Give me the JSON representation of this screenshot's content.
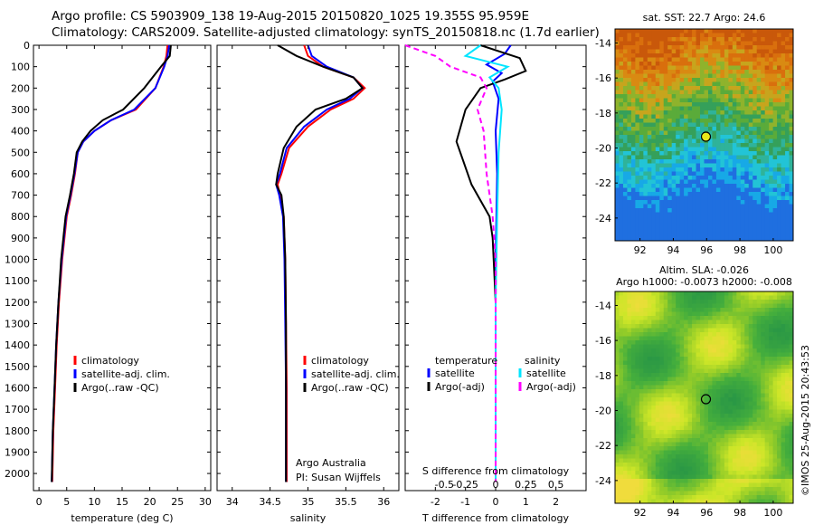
{
  "header": {
    "line1": "Argo profile: CS 5903909_138 19-Aug-2015 20150820_1025 19.355S 95.959E",
    "line2": "Climatology: CARS2009. Satellite-adjusted climatology: synTS_20150818.nc (1.7d earlier)"
  },
  "colors": {
    "climatology": "#ff0000",
    "satellite": "#0000ff",
    "argo": "#000000",
    "sal_satellite": "#00e5ff",
    "sal_argo": "#ff00ff"
  },
  "chart_data": [
    {
      "type": "line",
      "xlabel": "temperature (deg C)",
      "xlim": [
        -1,
        31
      ],
      "xticks": [
        0,
        5,
        10,
        15,
        20,
        25,
        30
      ],
      "ylim": [
        2080,
        0
      ],
      "yticks": [
        0,
        100,
        200,
        300,
        400,
        500,
        600,
        700,
        800,
        900,
        1000,
        1100,
        1200,
        1300,
        1400,
        1500,
        1600,
        1700,
        1800,
        1900,
        2000
      ],
      "legend": [
        "climatology",
        "satellite-adj. clim.",
        "Argo(..raw -QC)"
      ],
      "series": [
        {
          "name": "climatology",
          "color": "#ff0000",
          "x": [
            23.2,
            23.0,
            22.5,
            21.0,
            17.5,
            13.0,
            10.0,
            8.0,
            7.0,
            6.5,
            5.8,
            5.0,
            4.2,
            3.6,
            3.2,
            2.9,
            2.6,
            2.4
          ],
          "y": [
            0,
            50,
            100,
            200,
            300,
            350,
            400,
            450,
            500,
            600,
            700,
            800,
            1000,
            1200,
            1400,
            1600,
            1800,
            2040
          ]
        },
        {
          "name": "satellite-adj. clim.",
          "color": "#0000ff",
          "x": [
            23.5,
            23.2,
            22.6,
            21.0,
            17.2,
            13.0,
            10.0,
            8.0,
            7.0,
            6.4,
            5.7,
            4.9,
            4.1,
            3.5,
            3.1,
            2.8,
            2.5,
            2.3
          ],
          "y": [
            0,
            50,
            100,
            200,
            300,
            350,
            400,
            450,
            500,
            600,
            700,
            800,
            1000,
            1200,
            1400,
            1600,
            1800,
            2040
          ]
        },
        {
          "name": "Argo(..raw -QC)",
          "color": "#000000",
          "x": [
            23.8,
            23.6,
            22.0,
            19.0,
            15.2,
            11.5,
            9.3,
            7.8,
            6.8,
            6.3,
            5.6,
            4.8,
            4.0,
            3.5,
            3.1,
            2.8,
            2.5,
            2.3
          ],
          "y": [
            0,
            50,
            100,
            200,
            300,
            350,
            400,
            450,
            500,
            600,
            700,
            800,
            1000,
            1200,
            1400,
            1600,
            1800,
            2040
          ]
        }
      ]
    },
    {
      "type": "line",
      "xlabel": "salinity",
      "xlim": [
        33.8,
        36.2
      ],
      "xticks": [
        34,
        34.5,
        35,
        35.5,
        36
      ],
      "ylim": [
        2080,
        0
      ],
      "legend": [
        "climatology",
        "satellite-adj. clim.",
        "Argo(..raw -QC)"
      ],
      "annotation": [
        "Argo Australia",
        "PI: Susan Wijffels"
      ],
      "series": [
        {
          "name": "climatology",
          "color": "#ff0000",
          "x": [
            34.95,
            35.0,
            35.2,
            35.6,
            35.75,
            35.6,
            35.3,
            35.0,
            34.75,
            34.65,
            34.6,
            34.63,
            34.68,
            34.7,
            34.71,
            34.72,
            34.72,
            34.72
          ],
          "y": [
            0,
            50,
            100,
            150,
            200,
            250,
            300,
            380,
            480,
            600,
            650,
            700,
            800,
            1000,
            1300,
            1600,
            1900,
            2040
          ]
        },
        {
          "name": "satellite-adj. clim.",
          "color": "#0000ff",
          "x": [
            35.0,
            35.05,
            35.25,
            35.6,
            35.72,
            35.55,
            35.25,
            34.95,
            34.72,
            34.63,
            34.58,
            34.62,
            34.67,
            34.69,
            34.7,
            34.71,
            34.71,
            34.71
          ],
          "y": [
            0,
            50,
            100,
            150,
            200,
            250,
            300,
            380,
            480,
            600,
            650,
            700,
            800,
            1000,
            1300,
            1600,
            1900,
            2040
          ]
        },
        {
          "name": "Argo(..raw -QC)",
          "color": "#000000",
          "x": [
            34.6,
            34.85,
            35.2,
            35.6,
            35.72,
            35.5,
            35.1,
            34.85,
            34.68,
            34.6,
            34.58,
            34.65,
            34.68,
            34.7,
            34.71,
            34.71,
            34.71,
            34.71
          ],
          "y": [
            0,
            50,
            100,
            150,
            200,
            250,
            300,
            380,
            480,
            600,
            650,
            700,
            800,
            1000,
            1300,
            1600,
            1900,
            2040
          ]
        }
      ]
    },
    {
      "type": "line",
      "xlabel": "T difference from climatology",
      "xticks_T": [
        -2,
        -1,
        0,
        1,
        2
      ],
      "xlim_T": [
        -3,
        3
      ],
      "xlabel_S": "S difference from climatology",
      "xticks_S": [
        "-0.5",
        "-0.25",
        "0",
        "0.25",
        "0.5"
      ],
      "ylim": [
        2080,
        0
      ],
      "legend_left_title": "temperature",
      "legend_right_title": "salinity",
      "legend": [
        "satellite",
        "Argo(-adj)",
        "satellite",
        "Argo(-adj)"
      ],
      "series": [
        {
          "name": "satellite",
          "quantity": "temperature",
          "color": "#0000ff",
          "x": [
            0.5,
            0.3,
            -0.3,
            0.2,
            -0.1,
            0.1,
            0.0,
            0.05,
            0.0,
            0.0
          ],
          "y": [
            0,
            40,
            90,
            130,
            170,
            250,
            400,
            600,
            1000,
            2040
          ]
        },
        {
          "name": "Argo(-adj)",
          "quantity": "temperature",
          "color": "#000000",
          "x": [
            -0.5,
            0.8,
            1.0,
            0.3,
            -0.5,
            -1.0,
            -1.3,
            -0.8,
            -0.2,
            -0.1,
            0.0,
            0.0
          ],
          "y": [
            0,
            60,
            120,
            160,
            200,
            300,
            450,
            650,
            800,
            900,
            1200,
            2040
          ]
        },
        {
          "name": "satellite",
          "quantity": "salinity",
          "color": "#00e5ff",
          "x": [
            -0.5,
            -1.0,
            0.4,
            -0.2,
            0.1,
            0.2,
            0.1,
            0.05,
            0.0,
            0.0
          ],
          "y": [
            0,
            50,
            100,
            150,
            200,
            300,
            500,
            800,
            1200,
            2040
          ]
        },
        {
          "name": "Argo(-adj)",
          "quantity": "salinity",
          "color": "#ff00ff",
          "x": [
            -3.0,
            -2.0,
            -1.5,
            -0.5,
            -0.3,
            -0.6,
            -0.4,
            -0.3,
            -0.1,
            0.0,
            0.0
          ],
          "y": [
            0,
            50,
            100,
            150,
            200,
            300,
            400,
            600,
            800,
            1000,
            2040
          ]
        }
      ]
    },
    {
      "type": "heatmap",
      "title": "sat. SST: 22.7  Argo: 24.6",
      "xlim": [
        90.5,
        101.2
      ],
      "ylim": [
        -25.3,
        -13.2
      ],
      "xticks": [
        92,
        94,
        96,
        98,
        100
      ],
      "yticks": [
        -14,
        -16,
        -18,
        -20,
        -22,
        -24
      ],
      "marker": {
        "lon": 95.959,
        "lat": -19.355
      }
    },
    {
      "type": "heatmap",
      "title": "Altim. SLA: -0.026",
      "subtitle": "Argo h1000: -0.0073  h2000: -0.008",
      "xlim": [
        90.5,
        101.2
      ],
      "ylim": [
        -25.3,
        -13.2
      ],
      "xticks": [
        92,
        94,
        96,
        98,
        100
      ],
      "yticks": [
        -14,
        -16,
        -18,
        -20,
        -22,
        -24
      ],
      "marker": {
        "lon": 95.959,
        "lat": -19.355
      }
    }
  ],
  "credit": "©IMOS 25-Aug-2015 20:43:53"
}
